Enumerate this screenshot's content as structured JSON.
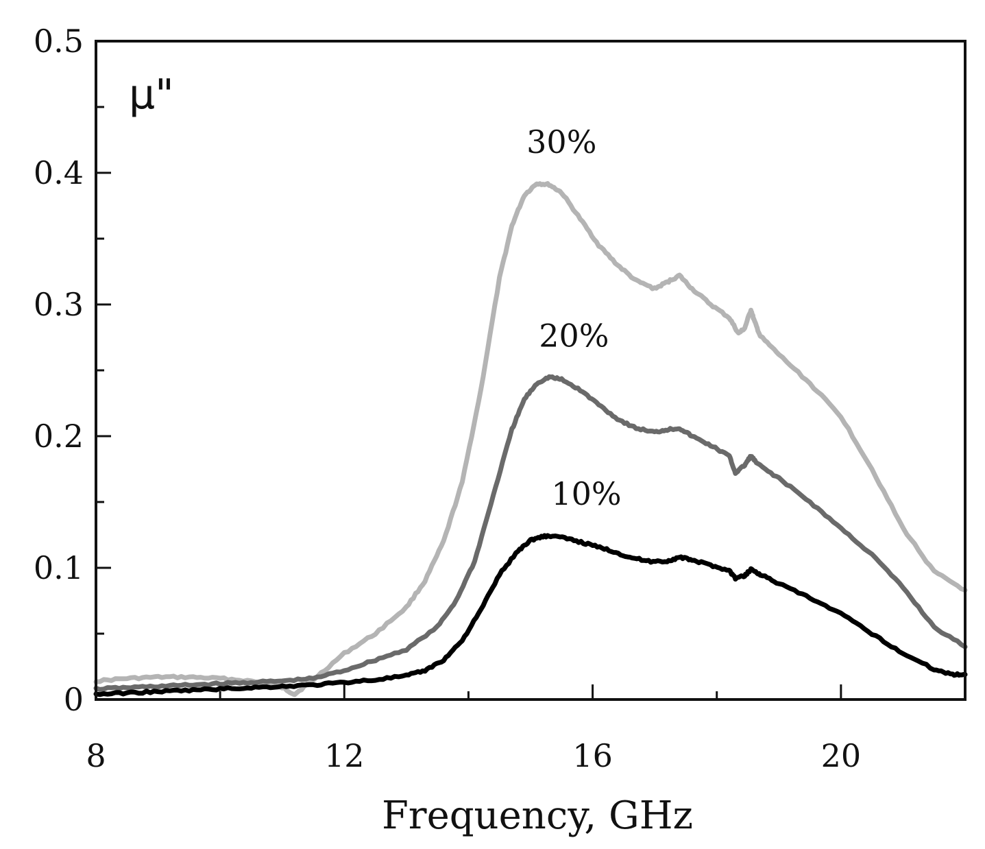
{
  "chart_data": {
    "type": "line",
    "title": "",
    "xlabel": "Frequency, GHz",
    "ylabel": "μ\"",
    "xlim": [
      8,
      22
    ],
    "ylim": [
      0,
      0.5
    ],
    "x_major_ticks": [
      8,
      12,
      16,
      20
    ],
    "x_minor_ticks": [
      10,
      14,
      18
    ],
    "y_major_ticks": [
      0,
      0.1,
      0.2,
      0.3,
      0.4,
      0.5
    ],
    "y_minor_ticks": [
      0.05,
      0.15,
      0.25,
      0.35,
      0.45
    ],
    "x_tick_labels": [
      "8",
      "12",
      "16",
      "20"
    ],
    "y_tick_labels": [
      "0",
      "0.1",
      "0.2",
      "0.3",
      "0.4",
      "0.5"
    ],
    "series": [
      {
        "name": "30%",
        "label_x": 15.5,
        "label_y": 0.415,
        "color": "#b4b4b4",
        "x": [
          8.0,
          8.5,
          9.0,
          9.5,
          10.0,
          10.5,
          11.0,
          11.2,
          11.5,
          12.0,
          12.5,
          13.0,
          13.3,
          13.6,
          13.9,
          14.2,
          14.5,
          14.7,
          14.9,
          15.1,
          15.3,
          15.5,
          15.8,
          16.1,
          16.4,
          16.7,
          17.0,
          17.2,
          17.4,
          17.6,
          17.9,
          18.2,
          18.35,
          18.45,
          18.55,
          18.6,
          18.7,
          19.0,
          19.5,
          20.0,
          20.5,
          21.0,
          21.5,
          22.0
        ],
        "y": [
          0.014,
          0.016,
          0.017,
          0.017,
          0.016,
          0.014,
          0.009,
          0.004,
          0.015,
          0.035,
          0.05,
          0.07,
          0.09,
          0.12,
          0.165,
          0.235,
          0.32,
          0.36,
          0.383,
          0.392,
          0.391,
          0.385,
          0.365,
          0.345,
          0.33,
          0.318,
          0.312,
          0.317,
          0.322,
          0.312,
          0.3,
          0.29,
          0.278,
          0.282,
          0.296,
          0.288,
          0.276,
          0.262,
          0.24,
          0.215,
          0.175,
          0.13,
          0.097,
          0.083
        ]
      },
      {
        "name": "20%",
        "label_x": 15.7,
        "label_y": 0.268,
        "color": "#6a6a6a",
        "x": [
          8.0,
          8.5,
          9.0,
          9.5,
          10.0,
          10.5,
          11.0,
          11.5,
          12.0,
          12.5,
          13.0,
          13.5,
          13.8,
          14.1,
          14.4,
          14.7,
          14.9,
          15.1,
          15.3,
          15.5,
          15.8,
          16.1,
          16.4,
          16.7,
          17.0,
          17.2,
          17.4,
          17.6,
          17.9,
          18.2,
          18.3,
          18.45,
          18.55,
          18.65,
          19.0,
          19.5,
          20.0,
          20.5,
          21.0,
          21.5,
          22.0
        ],
        "y": [
          0.008,
          0.009,
          0.01,
          0.011,
          0.012,
          0.013,
          0.014,
          0.016,
          0.022,
          0.03,
          0.038,
          0.055,
          0.075,
          0.105,
          0.155,
          0.205,
          0.228,
          0.24,
          0.245,
          0.243,
          0.235,
          0.224,
          0.213,
          0.206,
          0.203,
          0.205,
          0.206,
          0.2,
          0.193,
          0.185,
          0.172,
          0.178,
          0.185,
          0.179,
          0.168,
          0.15,
          0.13,
          0.11,
          0.085,
          0.055,
          0.04
        ]
      },
      {
        "name": "10%",
        "label_x": 15.9,
        "label_y": 0.148,
        "color": "#000000",
        "x": [
          8.0,
          8.5,
          9.0,
          9.5,
          10.0,
          10.5,
          11.0,
          11.5,
          12.0,
          12.5,
          13.0,
          13.3,
          13.6,
          13.9,
          14.2,
          14.5,
          14.8,
          15.0,
          15.2,
          15.4,
          15.7,
          16.0,
          16.3,
          16.6,
          16.9,
          17.2,
          17.4,
          17.6,
          17.9,
          18.2,
          18.3,
          18.45,
          18.55,
          18.7,
          19.0,
          19.5,
          20.0,
          20.5,
          21.0,
          21.5,
          21.8,
          22.0
        ],
        "y": [
          0.004,
          0.005,
          0.006,
          0.007,
          0.008,
          0.009,
          0.01,
          0.011,
          0.013,
          0.015,
          0.018,
          0.022,
          0.03,
          0.045,
          0.068,
          0.095,
          0.113,
          0.121,
          0.124,
          0.124,
          0.121,
          0.117,
          0.113,
          0.108,
          0.105,
          0.105,
          0.108,
          0.106,
          0.102,
          0.098,
          0.092,
          0.094,
          0.099,
          0.095,
          0.088,
          0.077,
          0.065,
          0.05,
          0.035,
          0.023,
          0.019,
          0.019
        ]
      }
    ]
  }
}
